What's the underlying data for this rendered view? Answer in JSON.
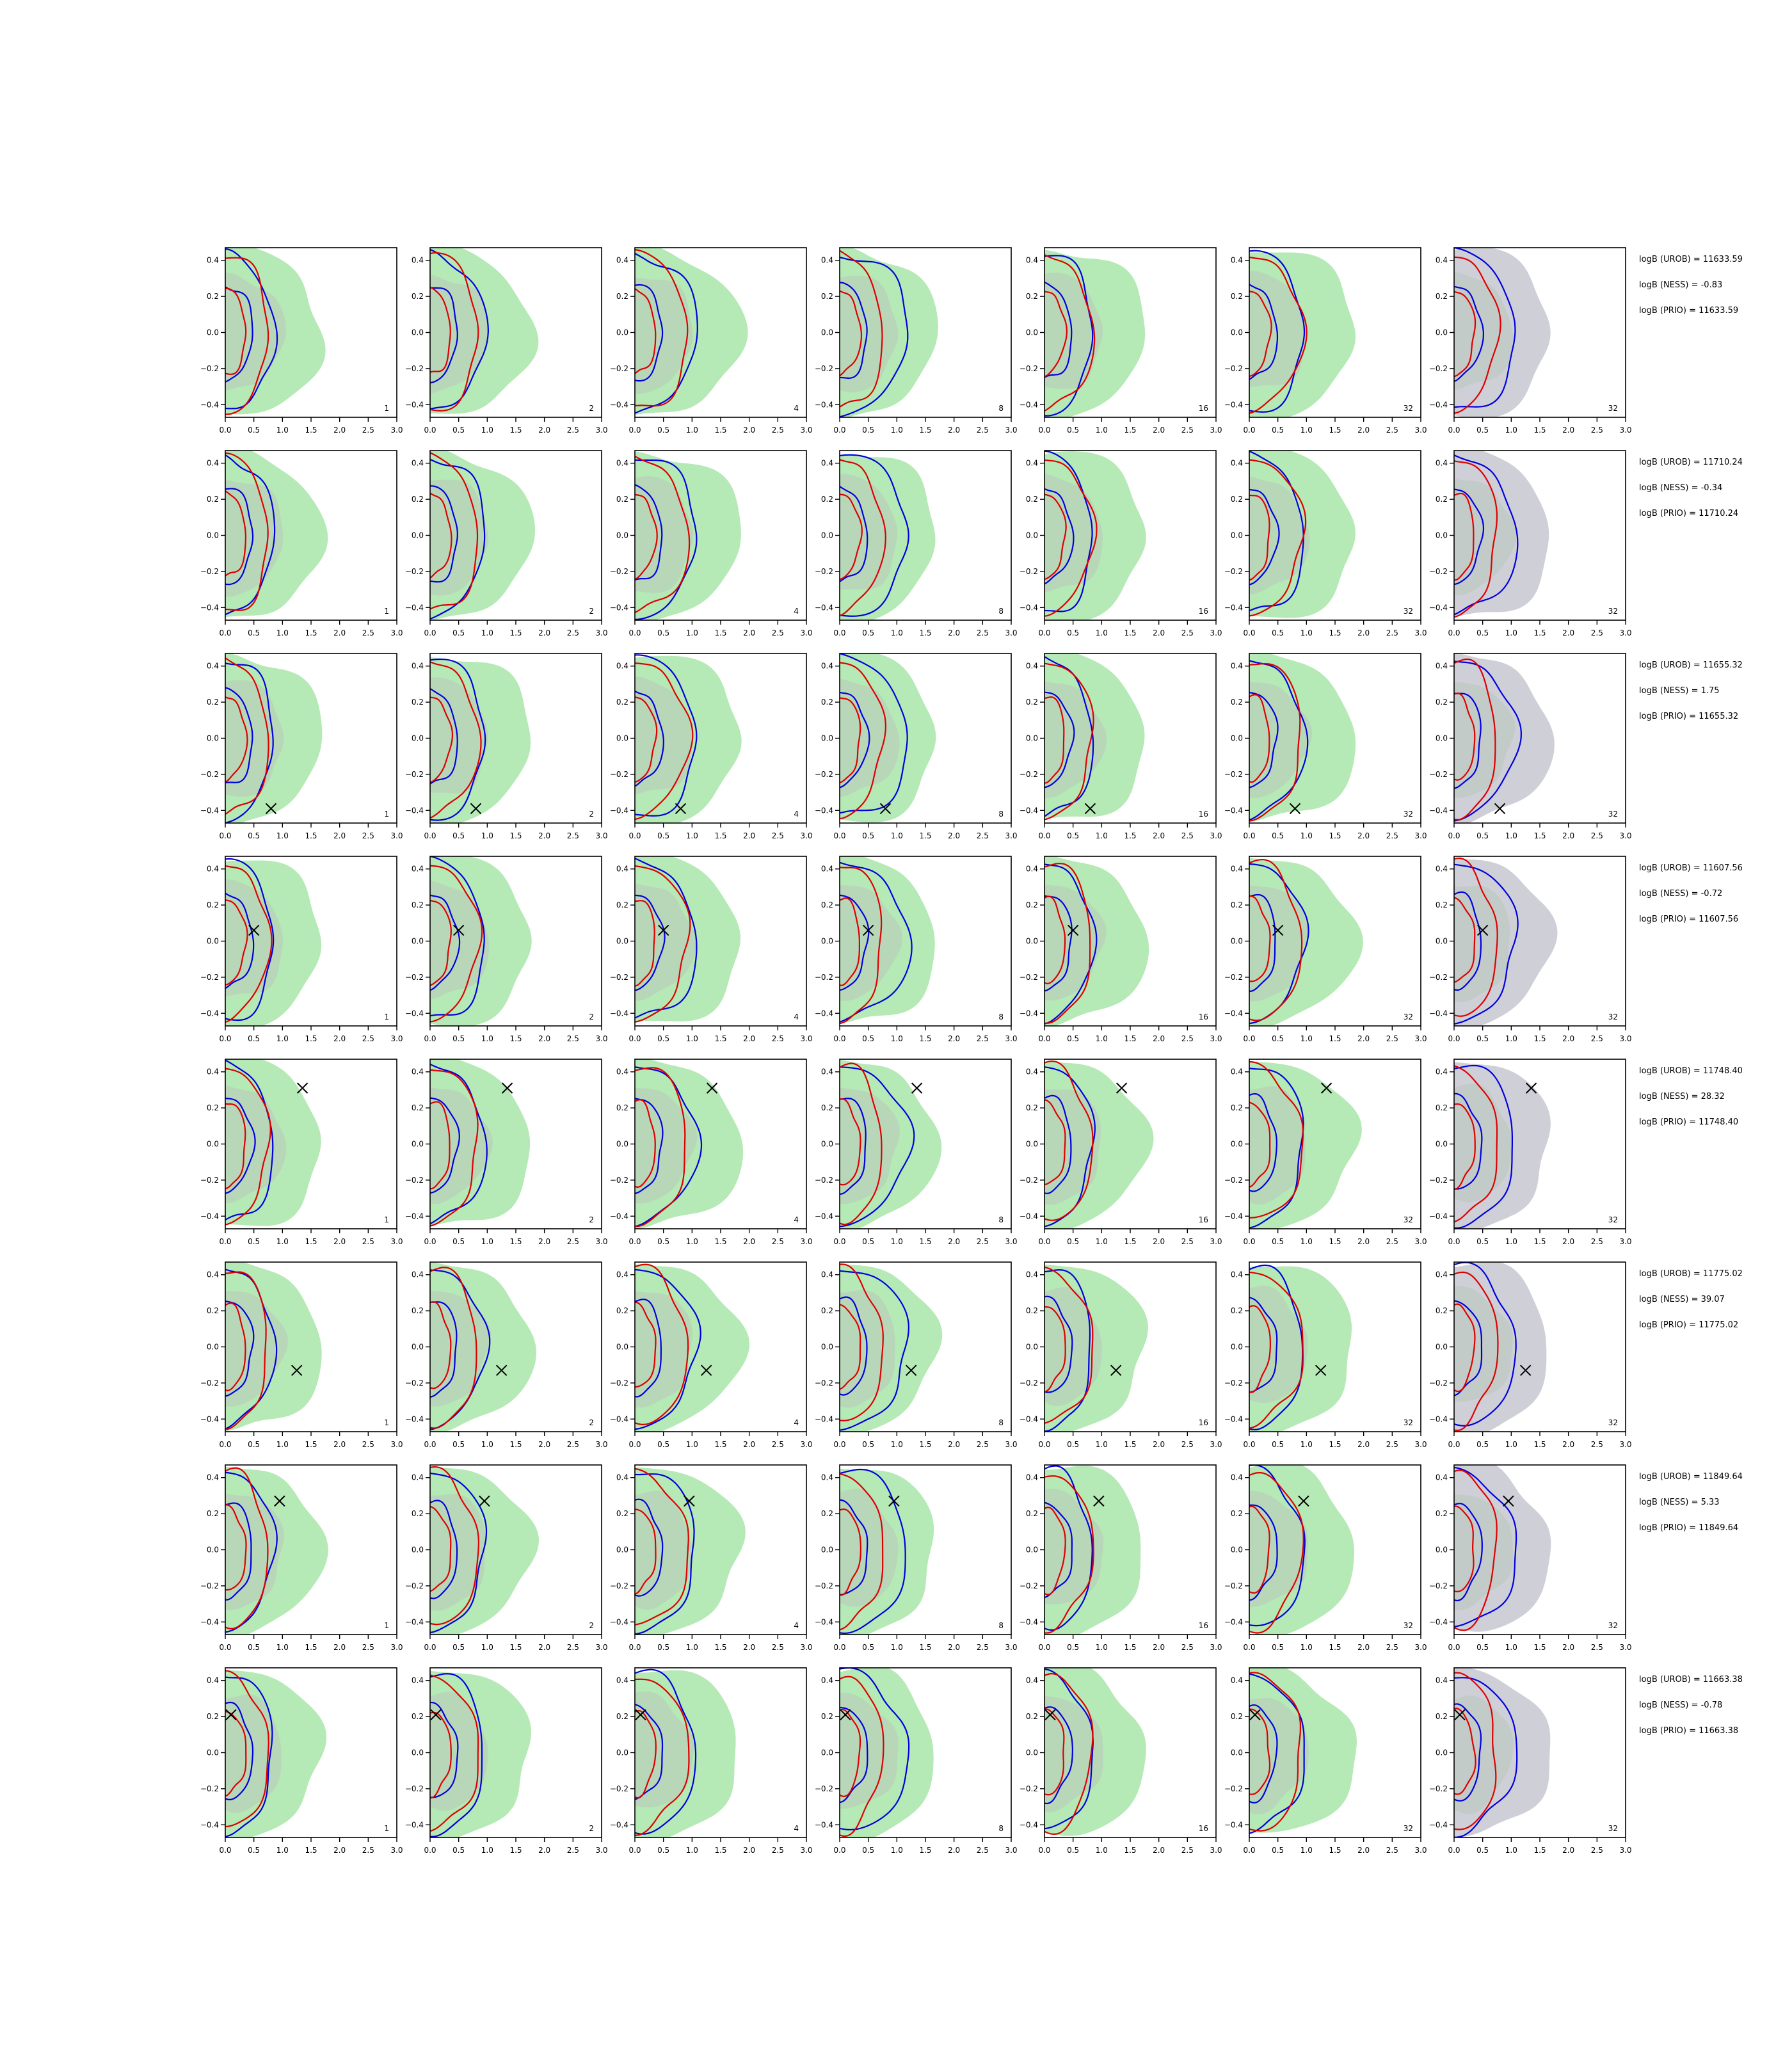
{
  "figure": {
    "background": "#ffffff",
    "colors": {
      "fill_green": "#b5e9b5",
      "fill_grey": "#cfcfd8",
      "contour_blue": "#0000dd",
      "contour_red": "#dd0000",
      "marker": "#000000",
      "axis": "#000000"
    }
  },
  "chart_data": {
    "type": "contour-grid",
    "rows": 8,
    "cols": 7,
    "xlim": [
      0.0,
      3.0
    ],
    "ylim": [
      -0.47,
      0.47
    ],
    "xticks": [
      0.0,
      0.5,
      1.0,
      1.5,
      2.0,
      2.5,
      3.0
    ],
    "xtick_labels": [
      "0.0",
      "0.5",
      "1.0",
      "1.5",
      "2.0",
      "2.5",
      "3.0"
    ],
    "yticks": [
      0.4,
      0.2,
      0.0,
      -0.2,
      -0.4
    ],
    "ytick_labels": [
      "0.4",
      "0.2",
      "0.0",
      "−0.2",
      "−0.4"
    ],
    "panel_labels": [
      "1",
      "2",
      "4",
      "8",
      "16",
      "32",
      "32"
    ],
    "panel_fill_types": [
      "green",
      "green",
      "green",
      "green",
      "green",
      "green",
      "grey"
    ],
    "true_points": [
      null,
      null,
      {
        "x": 0.8,
        "y": -0.39
      },
      {
        "x": 0.5,
        "y": 0.06
      },
      {
        "x": 1.35,
        "y": 0.31
      },
      {
        "x": 1.25,
        "y": -0.13
      },
      {
        "x": 0.95,
        "y": 0.27
      },
      {
        "x": 0.1,
        "y": 0.21
      }
    ],
    "annotations": [
      [
        "logB (UROB) = 11633.59",
        "logB (NESS) = -0.83",
        "logB (PRIO) = 11633.59"
      ],
      [
        "logB (UROB) = 11710.24",
        "logB (NESS) = -0.34",
        "logB (PRIO) = 11710.24"
      ],
      [
        "logB (UROB) = 11655.32",
        "logB (NESS) = 1.75",
        "logB (PRIO) = 11655.32"
      ],
      [
        "logB (UROB) = 11607.56",
        "logB (NESS) = -0.72",
        "logB (PRIO) = 11607.56"
      ],
      [
        "logB (UROB) = 11748.40",
        "logB (NESS) = 28.32",
        "logB (PRIO) = 11748.40"
      ],
      [
        "logB (UROB) = 11775.02",
        "logB (NESS) = 39.07",
        "logB (PRIO) = 11775.02"
      ],
      [
        "logB (UROB) = 11849.64",
        "logB (NESS) = 5.33",
        "logB (PRIO) = 11849.64"
      ],
      [
        "logB (UROB) = 11663.38",
        "logB (NESS) = -0.78",
        "logB (PRIO) = 11663.38"
      ]
    ]
  }
}
